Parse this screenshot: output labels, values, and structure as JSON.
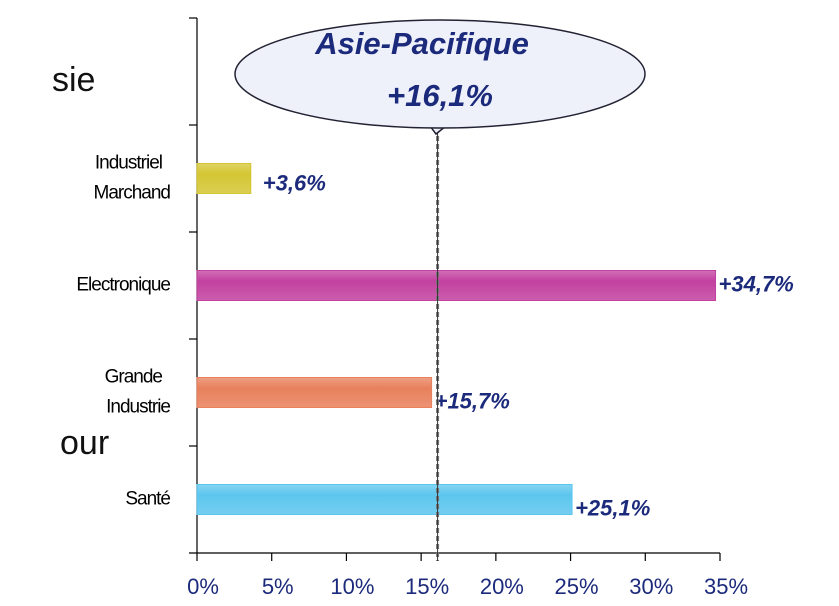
{
  "chart_data": {
    "type": "bar",
    "orientation": "horizontal",
    "categories": [
      "Industriel\nMarchand",
      "Electronique",
      "Grande\nIndustrie",
      "Santé"
    ],
    "values": [
      3.6,
      34.7,
      15.7,
      25.1
    ],
    "value_labels": [
      "+3,6%",
      "+34,7%",
      "+15,7%",
      "+25,1%"
    ],
    "colors": [
      "#d4c633",
      "#c2419f",
      "#e8805c",
      "#5cc6ee"
    ],
    "xlim": [
      0,
      35
    ],
    "xticks": [
      {
        "value": 0,
        "label": "0%"
      },
      {
        "value": 5,
        "label": "5%"
      },
      {
        "value": 10,
        "label": "10%"
      },
      {
        "value": 15,
        "label": "15%"
      },
      {
        "value": 20,
        "label": "20%"
      },
      {
        "value": 25,
        "label": "25%"
      },
      {
        "value": 30,
        "label": "30%"
      },
      {
        "value": 35,
        "label": "35%"
      }
    ],
    "reference": {
      "title": "Asie-Pacifique",
      "value": 16.1,
      "label": "+16,1%"
    },
    "annotations": [
      "sie",
      "our"
    ]
  }
}
